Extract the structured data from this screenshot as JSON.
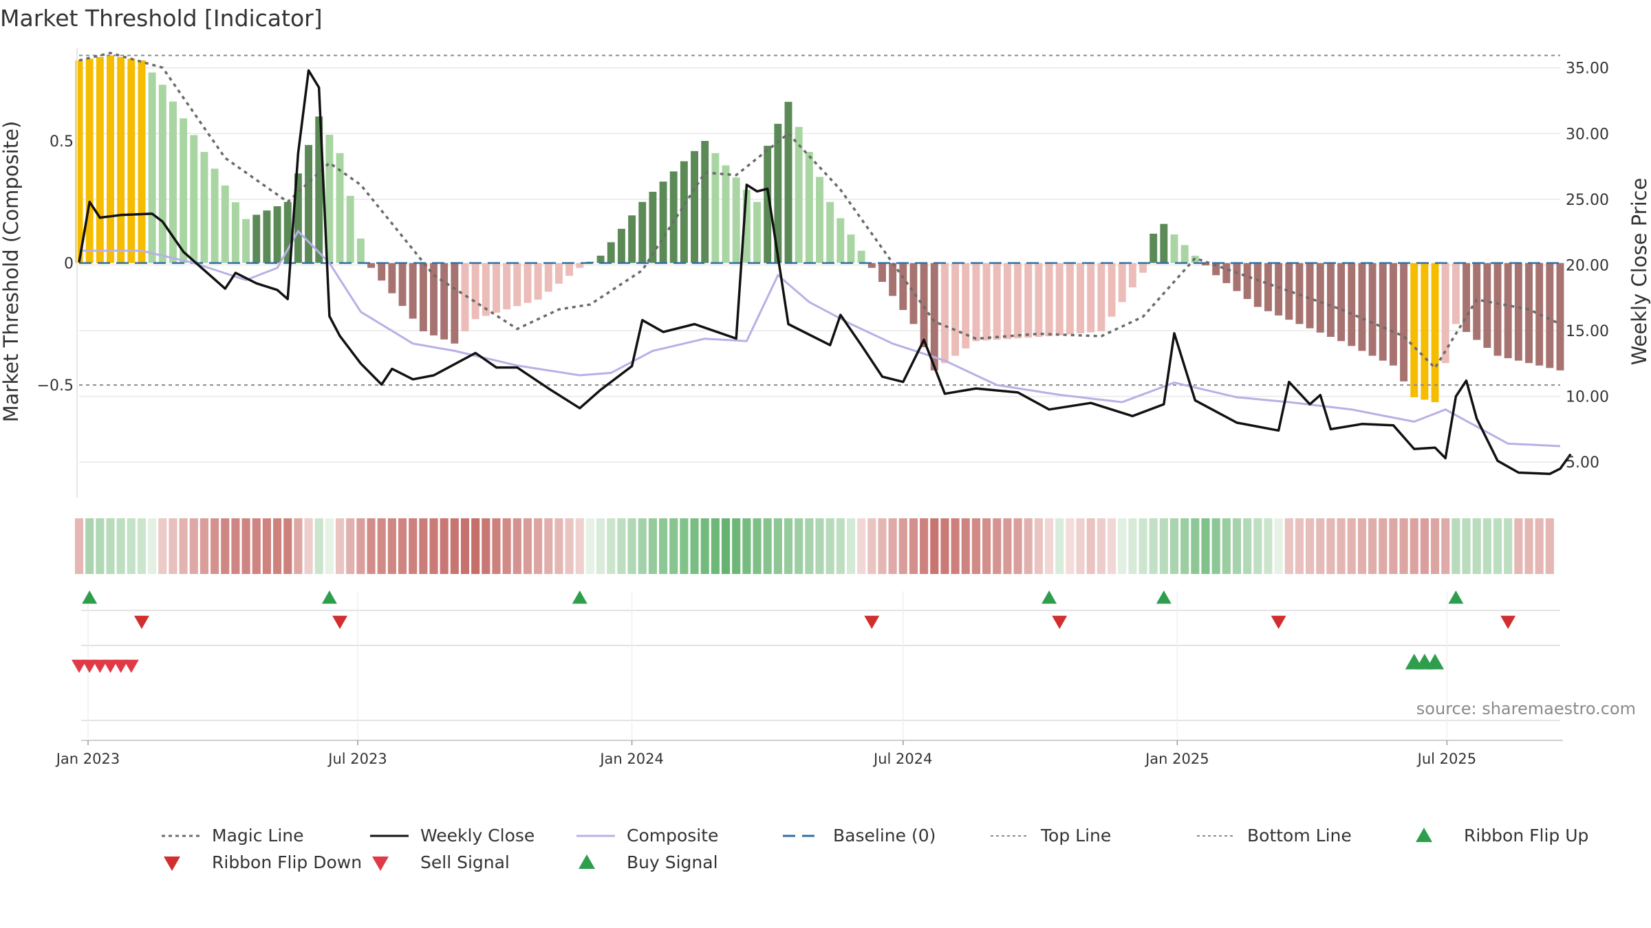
{
  "chart_data": {
    "type": "bar",
    "title": "Market Threshold [Indicator]",
    "ylabel_left": "Market Threshold (Composite)",
    "ylabel_right": "Weekly Close Price",
    "source": "source: sharemaestro.com",
    "left_axis": {
      "ylim": [
        -0.95,
        0.88
      ],
      "ticks": [
        0.5,
        0,
        -0.5
      ],
      "tick_labels": [
        "0.5",
        "0",
        "−0.5"
      ]
    },
    "right_axis": {
      "ylim": [
        2.5,
        36.5
      ],
      "ticks": [
        35,
        30,
        25,
        20,
        15,
        10,
        5
      ],
      "tick_labels": [
        "35.00",
        "30.00",
        "25.00",
        "20.00",
        "15.00",
        "10.00",
        "5.00"
      ]
    },
    "x_axis": {
      "type": "date",
      "range": [
        "2022-12-26",
        "2025-09-15"
      ],
      "ticks": [
        "2023-01-01",
        "2023-07-01",
        "2024-01-01",
        "2024-07-01",
        "2025-01-01",
        "2025-07-01"
      ],
      "tick_labels": [
        "Jan 2023",
        "Jul 2023",
        "Jan 2024",
        "Jul 2024",
        "Jan 2025",
        "Jul 2025"
      ]
    },
    "reference_lines": {
      "top_line": 0.85,
      "bottom_line": -0.5,
      "baseline": 0
    },
    "composite_keys": [
      [
        "2022-12-26",
        0.05
      ],
      [
        "2023-02-06",
        0.05
      ],
      [
        "2023-03-13",
        0.0
      ],
      [
        "2023-04-17",
        -0.07
      ],
      [
        "2023-05-08",
        -0.02
      ],
      [
        "2023-05-22",
        0.13
      ],
      [
        "2023-06-12",
        0.0
      ],
      [
        "2023-07-03",
        -0.2
      ],
      [
        "2023-08-07",
        -0.33
      ],
      [
        "2023-09-04",
        -0.36
      ],
      [
        "2023-10-16",
        -0.42
      ],
      [
        "2023-11-27",
        -0.46
      ],
      [
        "2023-12-18",
        -0.45
      ],
      [
        "2024-01-15",
        -0.36
      ],
      [
        "2024-02-19",
        -0.31
      ],
      [
        "2024-03-18",
        -0.32
      ],
      [
        "2024-04-08",
        -0.05
      ],
      [
        "2024-04-29",
        -0.16
      ],
      [
        "2024-05-27",
        -0.25
      ],
      [
        "2024-06-24",
        -0.33
      ],
      [
        "2024-07-29",
        -0.4
      ],
      [
        "2024-09-02",
        -0.5
      ],
      [
        "2024-10-14",
        -0.54
      ],
      [
        "2024-11-25",
        -0.57
      ],
      [
        "2024-12-30",
        -0.49
      ],
      [
        "2025-02-10",
        -0.55
      ],
      [
        "2025-03-17",
        -0.57
      ],
      [
        "2025-04-28",
        -0.6
      ],
      [
        "2025-06-09",
        -0.65
      ],
      [
        "2025-06-30",
        -0.6
      ],
      [
        "2025-08-11",
        -0.74
      ],
      [
        "2025-09-15",
        -0.75
      ]
    ],
    "magic_keys": [
      [
        "2022-12-26",
        0.83
      ],
      [
        "2023-01-16",
        0.86
      ],
      [
        "2023-02-20",
        0.8
      ],
      [
        "2023-04-03",
        0.43
      ],
      [
        "2023-05-15",
        0.25
      ],
      [
        "2023-06-12",
        0.41
      ],
      [
        "2023-07-03",
        0.32
      ],
      [
        "2023-08-21",
        -0.05
      ],
      [
        "2023-10-16",
        -0.27
      ],
      [
        "2023-11-13",
        -0.19
      ],
      [
        "2023-12-04",
        -0.17
      ],
      [
        "2024-01-08",
        -0.03
      ],
      [
        "2024-02-19",
        0.37
      ],
      [
        "2024-03-11",
        0.36
      ],
      [
        "2024-04-15",
        0.53
      ],
      [
        "2024-05-20",
        0.3
      ],
      [
        "2024-06-24",
        0.0
      ],
      [
        "2024-07-22",
        -0.24
      ],
      [
        "2024-08-19",
        -0.31
      ],
      [
        "2024-09-30",
        -0.29
      ],
      [
        "2024-11-11",
        -0.3
      ],
      [
        "2024-12-09",
        -0.22
      ],
      [
        "2025-01-13",
        0.02
      ],
      [
        "2025-02-24",
        -0.07
      ],
      [
        "2025-04-21",
        -0.19
      ],
      [
        "2025-06-02",
        -0.3
      ],
      [
        "2025-06-23",
        -0.43
      ],
      [
        "2025-07-21",
        -0.15
      ],
      [
        "2025-08-25",
        -0.19
      ],
      [
        "2025-09-15",
        -0.25
      ]
    ],
    "weekly_close_keys": [
      [
        "2022-12-26",
        20.2
      ],
      [
        "2023-01-02",
        24.8
      ],
      [
        "2023-01-09",
        23.6
      ],
      [
        "2023-01-23",
        23.8
      ],
      [
        "2023-02-13",
        23.9
      ],
      [
        "2023-02-20",
        23.3
      ],
      [
        "2023-03-06",
        21.0
      ],
      [
        "2023-03-20",
        19.6
      ],
      [
        "2023-04-03",
        18.2
      ],
      [
        "2023-04-10",
        19.4
      ],
      [
        "2023-04-24",
        18.6
      ],
      [
        "2023-05-08",
        18.1
      ],
      [
        "2023-05-15",
        17.4
      ],
      [
        "2023-05-22",
        28.5
      ],
      [
        "2023-05-29",
        34.8
      ],
      [
        "2023-06-05",
        33.5
      ],
      [
        "2023-06-12",
        16.1
      ],
      [
        "2023-06-19",
        14.6
      ],
      [
        "2023-07-03",
        12.5
      ],
      [
        "2023-07-17",
        10.9
      ],
      [
        "2023-07-24",
        12.1
      ],
      [
        "2023-08-07",
        11.3
      ],
      [
        "2023-08-21",
        11.6
      ],
      [
        "2023-09-18",
        13.3
      ],
      [
        "2023-10-02",
        12.2
      ],
      [
        "2023-10-16",
        12.2
      ],
      [
        "2023-11-06",
        10.6
      ],
      [
        "2023-11-27",
        9.1
      ],
      [
        "2023-12-11",
        10.5
      ],
      [
        "2024-01-01",
        12.3
      ],
      [
        "2024-01-08",
        15.8
      ],
      [
        "2024-01-22",
        14.9
      ],
      [
        "2024-02-12",
        15.5
      ],
      [
        "2024-03-11",
        14.4
      ],
      [
        "2024-03-18",
        26.1
      ],
      [
        "2024-03-25",
        25.6
      ],
      [
        "2024-04-01",
        25.8
      ],
      [
        "2024-04-15",
        15.5
      ],
      [
        "2024-05-13",
        13.9
      ],
      [
        "2024-05-20",
        16.2
      ],
      [
        "2024-06-03",
        13.9
      ],
      [
        "2024-06-17",
        11.5
      ],
      [
        "2024-07-01",
        11.1
      ],
      [
        "2024-07-15",
        14.3
      ],
      [
        "2024-07-29",
        10.2
      ],
      [
        "2024-08-19",
        10.6
      ],
      [
        "2024-09-16",
        10.3
      ],
      [
        "2024-10-07",
        9.0
      ],
      [
        "2024-11-04",
        9.5
      ],
      [
        "2024-12-02",
        8.5
      ],
      [
        "2024-12-23",
        9.4
      ],
      [
        "2024-12-30",
        14.8
      ],
      [
        "2025-01-13",
        9.7
      ],
      [
        "2025-02-10",
        8.0
      ],
      [
        "2025-03-10",
        7.4
      ],
      [
        "2025-03-17",
        11.1
      ],
      [
        "2025-03-31",
        9.4
      ],
      [
        "2025-04-07",
        10.1
      ],
      [
        "2025-04-14",
        7.5
      ],
      [
        "2025-05-05",
        7.9
      ],
      [
        "2025-05-26",
        7.8
      ],
      [
        "2025-06-09",
        6.0
      ],
      [
        "2025-06-23",
        6.1
      ],
      [
        "2025-06-30",
        5.3
      ],
      [
        "2025-07-07",
        10.0
      ],
      [
        "2025-07-14",
        11.2
      ],
      [
        "2025-07-21",
        8.3
      ],
      [
        "2025-08-04",
        5.1
      ],
      [
        "2025-08-18",
        4.2
      ],
      [
        "2025-09-08",
        4.1
      ],
      [
        "2025-09-15",
        4.5
      ],
      [
        "2025-09-22",
        5.6
      ]
    ],
    "histogram_keys": [
      [
        "2022-12-26",
        0.83
      ],
      [
        "2023-01-16",
        0.85
      ],
      [
        "2023-02-06",
        0.83
      ],
      [
        "2023-02-20",
        0.73
      ],
      [
        "2023-04-17",
        0.18
      ],
      [
        "2023-05-15",
        0.25
      ],
      [
        "2023-06-05",
        0.6
      ],
      [
        "2023-06-19",
        0.45
      ],
      [
        "2023-07-03",
        0.1
      ],
      [
        "2023-07-10",
        -0.02
      ],
      [
        "2023-08-14",
        -0.28
      ],
      [
        "2023-09-04",
        -0.33
      ],
      [
        "2023-09-18",
        -0.23
      ],
      [
        "2023-10-30",
        -0.15
      ],
      [
        "2023-11-27",
        -0.02
      ],
      [
        "2023-12-11",
        0.03
      ],
      [
        "2024-01-08",
        0.25
      ],
      [
        "2024-02-19",
        0.5
      ],
      [
        "2024-03-25",
        0.25
      ],
      [
        "2024-04-01",
        0.48
      ],
      [
        "2024-04-15",
        0.66
      ],
      [
        "2024-05-13",
        0.25
      ],
      [
        "2024-06-03",
        0.05
      ],
      [
        "2024-06-10",
        -0.02
      ],
      [
        "2024-07-08",
        -0.25
      ],
      [
        "2024-07-22",
        -0.44
      ],
      [
        "2024-08-19",
        -0.32
      ],
      [
        "2024-10-07",
        -0.3
      ],
      [
        "2024-11-11",
        -0.28
      ],
      [
        "2024-12-09",
        -0.04
      ],
      [
        "2024-12-16",
        0.12
      ],
      [
        "2024-12-23",
        0.16
      ],
      [
        "2025-01-13",
        0.03
      ],
      [
        "2025-01-27",
        -0.05
      ],
      [
        "2025-02-24",
        -0.18
      ],
      [
        "2025-04-21",
        -0.32
      ],
      [
        "2025-05-26",
        -0.42
      ],
      [
        "2025-06-09",
        -0.55
      ],
      [
        "2025-06-23",
        -0.57
      ],
      [
        "2025-07-07",
        -0.25
      ],
      [
        "2025-08-04",
        -0.38
      ],
      [
        "2025-09-15",
        -0.44
      ]
    ],
    "histogram_gold_weeks": [
      [
        "2022-12-26",
        "2023-02-06"
      ],
      [
        "2025-06-09",
        "2025-06-23"
      ]
    ],
    "ribbon_keys": [
      [
        "2022-12-26",
        -0.3
      ],
      [
        "2023-01-02",
        0.45
      ],
      [
        "2023-02-06",
        0.2
      ],
      [
        "2023-02-20",
        -0.15
      ],
      [
        "2023-04-03",
        -0.7
      ],
      [
        "2023-05-15",
        -0.75
      ],
      [
        "2023-06-05",
        0.2
      ],
      [
        "2023-06-19",
        -0.2
      ],
      [
        "2023-07-10",
        -0.65
      ],
      [
        "2023-09-18",
        -0.9
      ],
      [
        "2023-11-13",
        -0.3
      ],
      [
        "2023-11-27",
        -0.1
      ],
      [
        "2024-01-15",
        0.6
      ],
      [
        "2024-03-04",
        0.95
      ],
      [
        "2024-05-20",
        0.3
      ],
      [
        "2024-06-10",
        -0.2
      ],
      [
        "2024-07-22",
        -0.85
      ],
      [
        "2024-09-16",
        -0.5
      ],
      [
        "2024-10-14",
        0.1
      ],
      [
        "2024-11-04",
        -0.2
      ],
      [
        "2024-12-23",
        0.35
      ],
      [
        "2025-01-20",
        0.75
      ],
      [
        "2025-03-03",
        0.2
      ],
      [
        "2025-03-17",
        -0.2
      ],
      [
        "2025-06-16",
        -0.5
      ],
      [
        "2025-06-30",
        -0.4
      ],
      [
        "2025-07-07",
        0.35
      ],
      [
        "2025-08-11",
        0.3
      ],
      [
        "2025-08-18",
        -0.3
      ],
      [
        "2025-09-22",
        -0.3
      ]
    ],
    "ribbon_flip_up": [
      "2023-01-02",
      "2023-06-12",
      "2023-11-27",
      "2024-10-07",
      "2024-12-23",
      "2025-07-07"
    ],
    "ribbon_flip_down": [
      "2023-02-06",
      "2023-06-19",
      "2024-06-10",
      "2024-10-14",
      "2025-03-10",
      "2025-08-11"
    ],
    "sell_signals": [
      "2022-12-26",
      "2023-01-02",
      "2023-01-09",
      "2023-01-16",
      "2023-01-23",
      "2023-01-30"
    ],
    "buy_signals": [
      "2025-06-09",
      "2025-06-16",
      "2025-06-23"
    ],
    "legend": [
      "Magic Line",
      "Weekly Close",
      "Composite",
      "Baseline (0)",
      "Top Line",
      "Bottom Line",
      "Ribbon Flip Up",
      "Ribbon Flip Down",
      "Sell Signal",
      "Buy Signal"
    ]
  },
  "colors": {
    "gold": "#f5bc00",
    "green_light": "#a8d5a2",
    "green_dark": "#5b8a57",
    "red_light": "#ebbcb8",
    "red_dark": "#a77370",
    "magic": "#6b6b6b",
    "close": "#111111",
    "composite": "#b8b0e6",
    "baseline": "#2f6fa3",
    "flip_up": "#2e9e4d",
    "flip_down": "#d12e2e",
    "sell": "#e03a46",
    "buy": "#2e9e4d",
    "grid": "#e8e8e8"
  }
}
